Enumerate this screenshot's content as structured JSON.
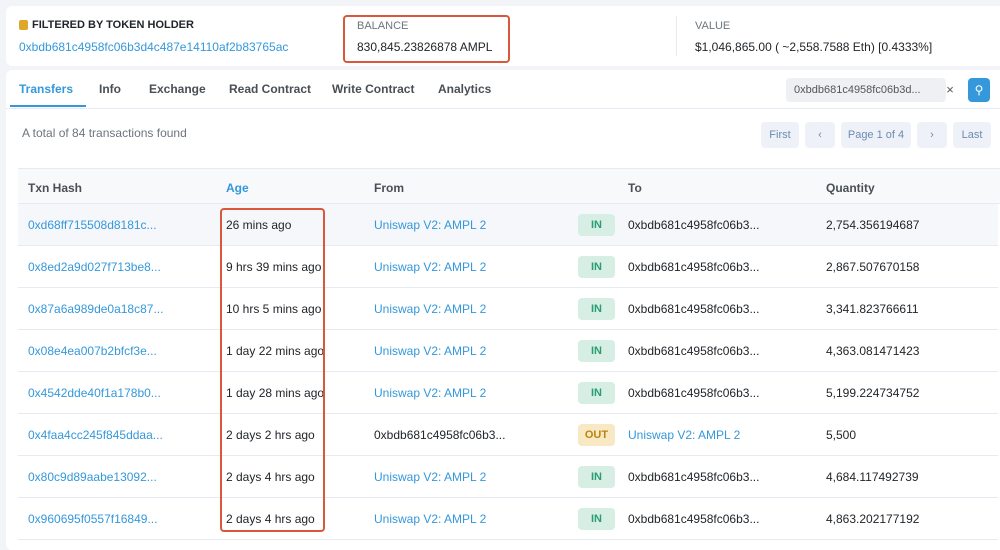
{
  "holder": {
    "label": "FILTERED BY TOKEN HOLDER",
    "address": "0xbdb681c4958fc06b3d4c487e14110af2b83765ac"
  },
  "balance": {
    "label": "BALANCE",
    "value": "830,845.23826878 AMPL"
  },
  "value": {
    "label": "VALUE",
    "value": "$1,046,865.00 ( ~2,558.7588 Eth) [0.4333%]"
  },
  "tabs": [
    "Transfers",
    "Info",
    "Exchange",
    "Read Contract",
    "Write Contract",
    "Analytics"
  ],
  "search": {
    "value": "0xbdb681c4958fc06b3d...",
    "clear": "×"
  },
  "summary": "A total of 84 transactions found",
  "pagination": {
    "first": "First",
    "prev": "‹",
    "page": "Page 1 of 4",
    "next": "›",
    "last": "Last"
  },
  "columns": [
    "Txn Hash",
    "Age",
    "From",
    "To",
    "Quantity"
  ],
  "colors": {
    "accent": "#3498db",
    "highlight": "#d9583b",
    "in": "#2b9d73",
    "out": "#b8860b"
  },
  "rows": [
    {
      "hash": "0xd68ff715508d8181c...",
      "age": "26 mins ago",
      "from": "Uniswap V2: AMPL 2",
      "dir": "IN",
      "to": "0xbdb681c4958fc06b3...",
      "qty": "2,754.356194687"
    },
    {
      "hash": "0x8ed2a9d027f713be8...",
      "age": "9 hrs 39 mins ago",
      "from": "Uniswap V2: AMPL 2",
      "dir": "IN",
      "to": "0xbdb681c4958fc06b3...",
      "qty": "2,867.507670158"
    },
    {
      "hash": "0x87a6a989de0a18c87...",
      "age": "10 hrs 5 mins ago",
      "from": "Uniswap V2: AMPL 2",
      "dir": "IN",
      "to": "0xbdb681c4958fc06b3...",
      "qty": "3,341.823766611"
    },
    {
      "hash": "0x08e4ea007b2bfcf3e...",
      "age": "1 day 22 mins ago",
      "from": "Uniswap V2: AMPL 2",
      "dir": "IN",
      "to": "0xbdb681c4958fc06b3...",
      "qty": "4,363.081471423"
    },
    {
      "hash": "0x4542dde40f1a178b0...",
      "age": "1 day 28 mins ago",
      "from": "Uniswap V2: AMPL 2",
      "dir": "IN",
      "to": "0xbdb681c4958fc06b3...",
      "qty": "5,199.224734752"
    },
    {
      "hash": "0x4faa4cc245f845ddaa...",
      "age": "2 days 2 hrs ago",
      "from": "0xbdb681c4958fc06b3...",
      "dir": "OUT",
      "to": "Uniswap V2: AMPL 2",
      "qty": "5,500"
    },
    {
      "hash": "0x80c9d89aabe13092...",
      "age": "2 days 4 hrs ago",
      "from": "Uniswap V2: AMPL 2",
      "dir": "IN",
      "to": "0xbdb681c4958fc06b3...",
      "qty": "4,684.117492739"
    },
    {
      "hash": "0x960695f0557f16849...",
      "age": "2 days 4 hrs ago",
      "from": "Uniswap V2: AMPL 2",
      "dir": "IN",
      "to": "0xbdb681c4958fc06b3...",
      "qty": "4,863.202177192"
    }
  ]
}
